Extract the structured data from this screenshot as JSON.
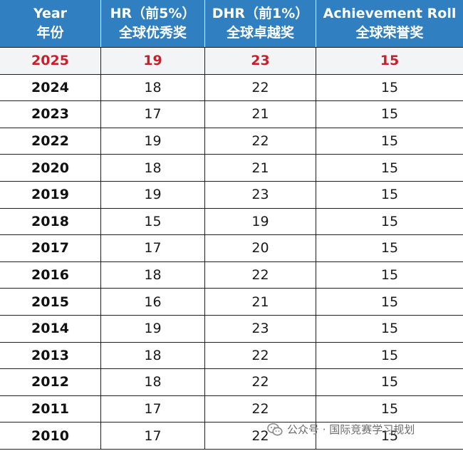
{
  "header": {
    "year_line1": "Year",
    "year_line2": "年份",
    "hr_line1": "HR（前5%）",
    "hr_line2": "全球优秀奖",
    "dhr_line1": "DHR（前1%）",
    "dhr_line2": "全球卓越奖",
    "ach_line1": "Achievement Roll",
    "ach_line2": "全球荣誉奖"
  },
  "rows": [
    {
      "year": "2025",
      "hr": "19",
      "dhr": "23",
      "ach": "15"
    },
    {
      "year": "2024",
      "hr": "18",
      "dhr": "22",
      "ach": "15"
    },
    {
      "year": "2023",
      "hr": "17",
      "dhr": "21",
      "ach": "15"
    },
    {
      "year": "2022",
      "hr": "19",
      "dhr": "22",
      "ach": "15"
    },
    {
      "year": "2020",
      "hr": "18",
      "dhr": "21",
      "ach": "15"
    },
    {
      "year": "2019",
      "hr": "19",
      "dhr": "23",
      "ach": "15"
    },
    {
      "year": "2018",
      "hr": "15",
      "dhr": "19",
      "ach": "15"
    },
    {
      "year": "2017",
      "hr": "17",
      "dhr": "20",
      "ach": "15"
    },
    {
      "year": "2016",
      "hr": "18",
      "dhr": "22",
      "ach": "15"
    },
    {
      "year": "2015",
      "hr": "16",
      "dhr": "21",
      "ach": "15"
    },
    {
      "year": "2014",
      "hr": "19",
      "dhr": "23",
      "ach": "15"
    },
    {
      "year": "2013",
      "hr": "18",
      "dhr": "22",
      "ach": "15"
    },
    {
      "year": "2012",
      "hr": "18",
      "dhr": "22",
      "ach": "15"
    },
    {
      "year": "2011",
      "hr": "17",
      "dhr": "22",
      "ach": "15"
    },
    {
      "year": "2010",
      "hr": "17",
      "dhr": "22",
      "ach": "15"
    }
  ],
  "watermark": {
    "icon": "wechat-icon",
    "text": "公众号 · 国际竞赛学习规划"
  },
  "colors": {
    "header_bg": "#2f7fc1",
    "highlight_text": "#c8202a",
    "highlight_row_bg": "#f3f4f6"
  }
}
